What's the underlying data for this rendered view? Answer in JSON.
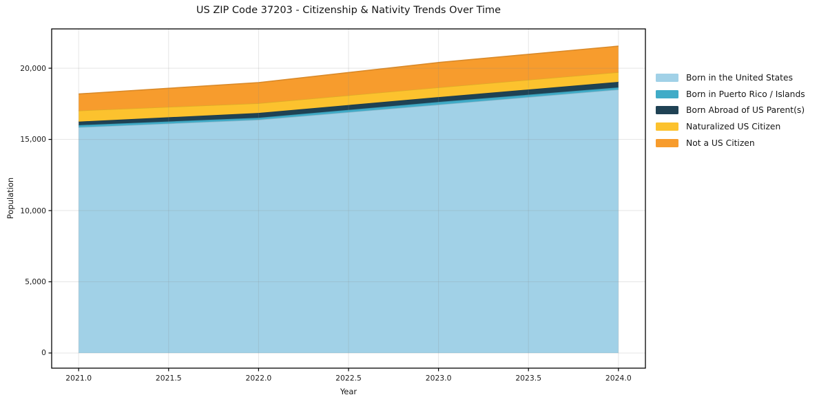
{
  "chart_data": {
    "type": "area",
    "stacked": true,
    "title": "US ZIP Code 37203 - Citizenship & Nativity Trends Over Time",
    "xlabel": "Year",
    "ylabel": "Population",
    "x": [
      2021,
      2022,
      2023,
      2024
    ],
    "series": [
      {
        "name": "Born in the United States",
        "color": "#A1D1E7",
        "values": [
          15850,
          16380,
          17440,
          18500
        ]
      },
      {
        "name": "Born in Puerto Rico / Islands",
        "color": "#40ABC7",
        "values": [
          150,
          140,
          190,
          150
        ]
      },
      {
        "name": "Born Abroad of US Parent(s)",
        "color": "#1F4254",
        "values": [
          250,
          340,
          340,
          390
        ]
      },
      {
        "name": "Naturalized US Citizen",
        "color": "#FCC22E",
        "values": [
          770,
          680,
          680,
          680
        ]
      },
      {
        "name": "Not a US Citizen",
        "color": "#F79C2D",
        "values": [
          1170,
          1450,
          1750,
          1830
        ]
      }
    ],
    "xlim": [
      2020.85,
      2024.15
    ],
    "ylim": [
      -1065,
      22760
    ],
    "xticks": {
      "values": [
        2021.0,
        2021.5,
        2022.0,
        2022.5,
        2023.0,
        2023.5,
        2024.0
      ],
      "labels": [
        "2021.0",
        "2021.5",
        "2022.0",
        "2022.5",
        "2023.0",
        "2023.5",
        "2024.0"
      ]
    },
    "yticks": {
      "values": [
        0,
        5000,
        10000,
        15000,
        20000
      ],
      "labels": [
        "0",
        "5,000",
        "10,000",
        "15,000",
        "20,000"
      ]
    },
    "grid": true,
    "legend": {
      "position": "outside-right",
      "entries": [
        "Born in the United States",
        "Born in Puerto Rico / Islands",
        "Born Abroad of US Parent(s)",
        "Naturalized US Citizen",
        "Not a US Citizen"
      ]
    }
  }
}
